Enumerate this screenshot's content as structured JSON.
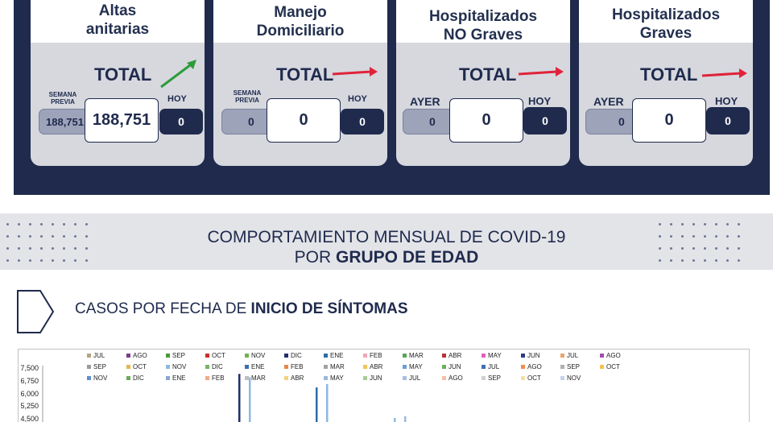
{
  "cards": [
    {
      "title_line1": "Altas",
      "title_line2": "anitarias",
      "total_label": "TOTAL",
      "left_label_line1": "SEMANA",
      "left_label_line2": "PREVIA",
      "left_value": "188,751",
      "center_value": "188,751",
      "right_label": "HOY",
      "right_value": "0",
      "trend": "up-green"
    },
    {
      "title_line1": "Manejo",
      "title_line2": "Domiciliario",
      "total_label": "TOTAL",
      "left_label_line1": "SEMANA",
      "left_label_line2": "PREVIA",
      "left_value": "0",
      "center_value": "0",
      "right_label": "HOY",
      "right_value": "0",
      "trend": "flat-red"
    },
    {
      "title_line1": "Hospitalizados",
      "title_line2": "NO Graves",
      "total_label": "TOTAL",
      "left_label_line1": "AYER",
      "left_value": "0",
      "center_value": "0",
      "right_label": "HOY",
      "right_value": "0",
      "trend": "flat-red"
    },
    {
      "title_line1": "Hospitalizados",
      "title_line2": "Graves",
      "total_label": "TOTAL",
      "left_label_line1": "AYER",
      "left_value": "0",
      "center_value": "0",
      "right_label": "HOY",
      "right_value": "0",
      "trend": "flat-red"
    }
  ],
  "banner": {
    "line1": "COMPORTAMIENTO MENSUAL DE COVID-19",
    "line2_prefix": "POR ",
    "line2_bold": "GRUPO DE EDAD"
  },
  "subsection": {
    "title_prefix": "CASOS POR FECHA DE ",
    "title_bold": "INICIO  DE SÍNTOMAS"
  },
  "colors": {
    "navy": "#1f2a4d",
    "card_bg": "#d6d8de",
    "arrow_green": "#2e9b3a",
    "arrow_red": "#e0233a"
  },
  "chart_data": {
    "type": "bar",
    "yticks": [
      "7,500",
      "6,750",
      "6,000",
      "5,250",
      "4,500"
    ],
    "ylim": [
      4500,
      7500
    ],
    "legend": [
      [
        {
          "label": "JUL",
          "color": "#b5a57d"
        },
        {
          "label": "AGO",
          "color": "#7b3d8a"
        },
        {
          "label": "SEP",
          "color": "#4a9a3c"
        },
        {
          "label": "OCT",
          "color": "#c9302c"
        },
        {
          "label": "NOV",
          "color": "#6db34f"
        },
        {
          "label": "DIC",
          "color": "#1f2f6b"
        },
        {
          "label": "ENE",
          "color": "#2c6da8"
        },
        {
          "label": "FEB",
          "color": "#f3a5b8"
        },
        {
          "label": "MAR",
          "color": "#5aa65a"
        },
        {
          "label": "ABR",
          "color": "#b8323a"
        },
        {
          "label": "MAY",
          "color": "#e05fc0"
        },
        {
          "label": "JUN",
          "color": "#2a3c82"
        },
        {
          "label": "JUL",
          "color": "#e8a46b"
        },
        {
          "label": "AGO",
          "color": "#a14db0"
        }
      ],
      [
        {
          "label": "SEP",
          "color": "#9a9a9a"
        },
        {
          "label": "OCT",
          "color": "#e6b64a"
        },
        {
          "label": "NOV",
          "color": "#8fb8e0"
        },
        {
          "label": "DIC",
          "color": "#77b36a"
        },
        {
          "label": "ENE",
          "color": "#3a6fb2"
        },
        {
          "label": "FEB",
          "color": "#e5884a"
        },
        {
          "label": "MAR",
          "color": "#a3a3a3"
        },
        {
          "label": "ABR",
          "color": "#f0c45a"
        },
        {
          "label": "MAY",
          "color": "#6b9fd8"
        },
        {
          "label": "JUN",
          "color": "#6ab35a"
        },
        {
          "label": "JUL",
          "color": "#3f70b5"
        },
        {
          "label": "AGO",
          "color": "#ee8e4a"
        },
        {
          "label": "SEP",
          "color": "#b0b0b0"
        },
        {
          "label": "OCT",
          "color": "#f2c34d"
        }
      ],
      [
        {
          "label": "NOV",
          "color": "#5f8fcb"
        },
        {
          "label": "DIC",
          "color": "#6aaa5a"
        },
        {
          "label": "ENE",
          "color": "#8aa6cf"
        },
        {
          "label": "FEB",
          "color": "#f0a98a"
        },
        {
          "label": "MAR",
          "color": "#c0c0c0"
        },
        {
          "label": "ABR",
          "color": "#f4d27a"
        },
        {
          "label": "MAY",
          "color": "#9db8dd"
        },
        {
          "label": "JUN",
          "color": "#a6cf92"
        },
        {
          "label": "JUL",
          "color": "#a9bfdf"
        },
        {
          "label": "AGO",
          "color": "#f3c0a8"
        },
        {
          "label": "SEP",
          "color": "#d0d0d0"
        },
        {
          "label": "OCT",
          "color": "#f5dfa6"
        },
        {
          "label": "NOV",
          "color": "#c5d3ea"
        }
      ]
    ],
    "bars": [
      {
        "x_index": 0,
        "value": 7200,
        "color": "#1f2f6b"
      },
      {
        "x_index": 1,
        "value": 7000,
        "color": "#8fb8e0"
      },
      {
        "x_index": 2,
        "value": 6400,
        "color": "#2c6da8"
      },
      {
        "x_index": 3,
        "value": 6600,
        "color": "#8fb8e0"
      },
      {
        "x_index": 4,
        "value": 4600,
        "color": "#8fb8e0"
      },
      {
        "x_index": 5,
        "value": 4700,
        "color": "#9db8dd"
      }
    ]
  }
}
